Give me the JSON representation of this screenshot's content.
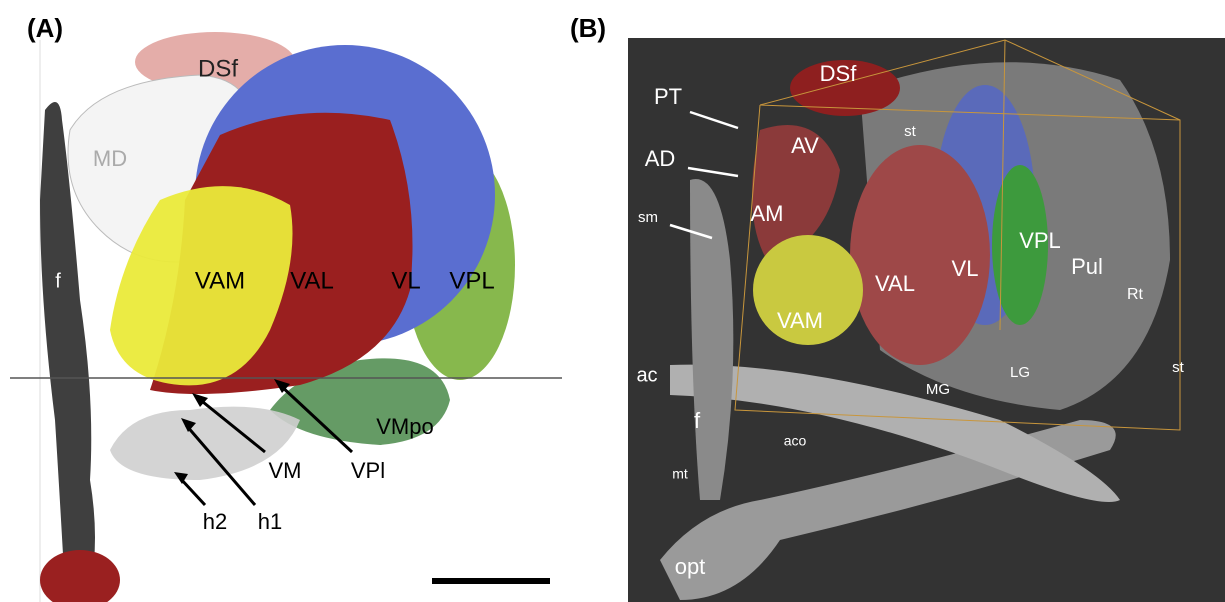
{
  "panel_a": {
    "label": "(A)",
    "labels": [
      "DSf",
      "MD",
      "f",
      "VAM",
      "VAL",
      "VL",
      "VPL",
      "VMpo",
      "VM",
      "VPl",
      "h2",
      "h1"
    ]
  },
  "panel_b": {
    "label": "(B)",
    "labels": [
      "DSf",
      "PT",
      "AD",
      "AV",
      "st",
      "AM",
      "sm",
      "VPL",
      "Pul",
      "Rt",
      "VL",
      "VAL",
      "VAM",
      "ac",
      "MG",
      "LG",
      "st",
      "f",
      "aco",
      "mt",
      "opt"
    ]
  }
}
